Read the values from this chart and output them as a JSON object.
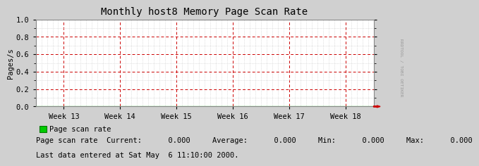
{
  "title": "Monthly host8 Memory Page Scan Rate",
  "ylabel": "Pages/s",
  "xlabels": [
    "Week 13",
    "Week 14",
    "Week 15",
    "Week 16",
    "Week 17",
    "Week 18"
  ],
  "ylim": [
    0.0,
    1.0
  ],
  "yticks": [
    0.0,
    0.2,
    0.4,
    0.6,
    0.8,
    1.0
  ],
  "bg_color": "#d0d0d0",
  "plot_bg_color": "#ffffff",
  "grid_major_color": "#cc0000",
  "grid_minor_color": "#c8c8c8",
  "line_color": "#00cc00",
  "line_value": 0.0,
  "arrow_color": "#cc0000",
  "legend_label": "Page scan rate",
  "legend_color": "#00cc00",
  "stats_line": "Page scan rate  Current:      0.000     Average:      0.000     Min:      0.000     Max:      0.000",
  "last_data_text": "Last data entered at Sat May  6 11:10:00 2000.",
  "watermark": "RRDTOOL / TOBI OETIKER",
  "title_fontsize": 10,
  "label_fontsize": 7.5,
  "tick_fontsize": 7.5,
  "stats_fontsize": 7.5,
  "mono_font": "monospace",
  "watermark_color": "#999999"
}
